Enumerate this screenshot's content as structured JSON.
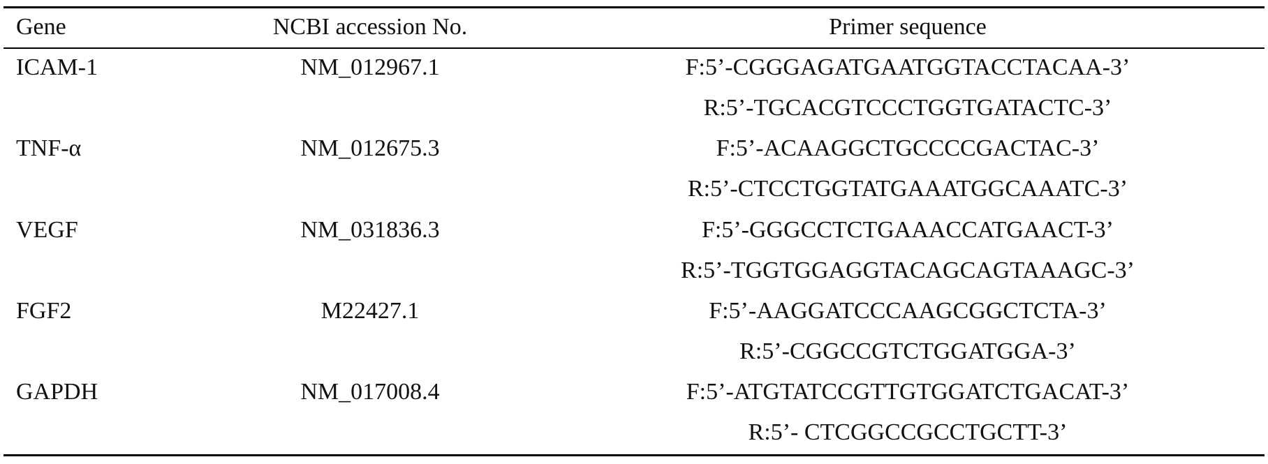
{
  "table": {
    "headers": {
      "gene": "Gene",
      "accession": "NCBI accession No.",
      "primer": "Primer sequence"
    },
    "rows": [
      {
        "gene": "ICAM-1",
        "accession": "NM_012967.1",
        "forward": "F:5’-CGGGAGATGAATGGTACCTACAA-3’",
        "reverse": "R:5’-TGCACGTCCCTGGTGATACTC-3’"
      },
      {
        "gene": "TNF-α",
        "accession": "NM_012675.3",
        "forward": "F:5’-ACAAGGCTGCCCCGACTAC-3’",
        "reverse": "R:5’-CTCCTGGTATGAAATGGCAAATC-3’"
      },
      {
        "gene": "VEGF",
        "accession": "NM_031836.3",
        "forward": "F:5’-GGGCCTCTGAAACCATGAACT-3’",
        "reverse": "R:5’-TGGTGGAGGTACAGCAGTAAAGC-3’"
      },
      {
        "gene": "FGF2",
        "accession": "M22427.1",
        "forward": "F:5’-AAGGATCCCAAGCGGCTCTA-3’",
        "reverse": "R:5’-CGGCCGTCTGGATGGA-3’"
      },
      {
        "gene": "GAPDH",
        "accession": "NM_017008.4",
        "forward": "F:5’-ATGTATCCGTTGTGGATCTGACAT-3’",
        "reverse": "R:5’- CTCGGCCGCCTGCTT-3’"
      }
    ]
  }
}
